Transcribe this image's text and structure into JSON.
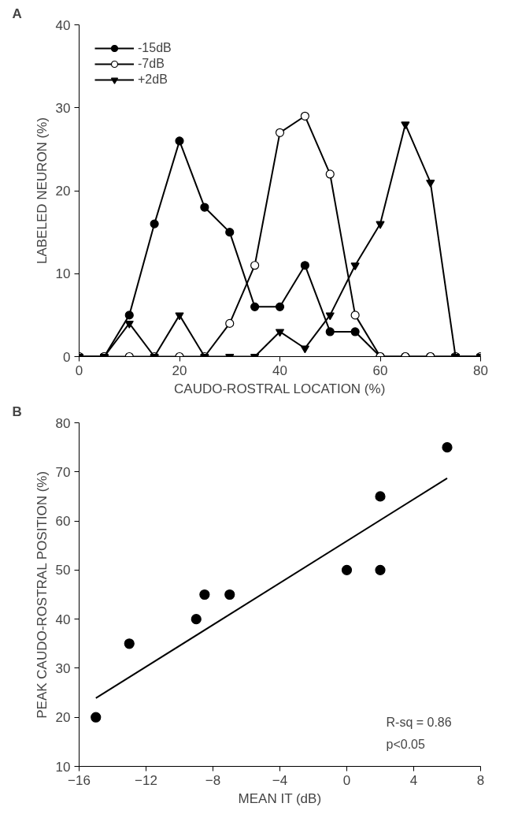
{
  "chart_data": [
    {
      "type": "line",
      "title": "A",
      "xlabel": "CAUDO-ROSTRAL LOCATION (%)",
      "ylabel": "LABELED NEURON (%)",
      "x": [
        0,
        5,
        10,
        15,
        20,
        25,
        30,
        35,
        40,
        45,
        50,
        55,
        60,
        65,
        70,
        75,
        80
      ],
      "xlim": [
        0,
        80
      ],
      "xticks": [
        0,
        20,
        40,
        60,
        80
      ],
      "ylim": [
        0,
        40
      ],
      "yticks": [
        0,
        10,
        20,
        30,
        40
      ],
      "grid": false,
      "legend": "top left",
      "line_style": "solid",
      "series": [
        {
          "name": "-15dB",
          "color": "#000000",
          "marker": "circle",
          "values": [
            0,
            0,
            5,
            16,
            26,
            18,
            15,
            6,
            6,
            11,
            3,
            3,
            0,
            0,
            0,
            0,
            0
          ]
        },
        {
          "name": "-7dB",
          "color": "#ffffff",
          "marker": "circle",
          "values": [
            0,
            0,
            0,
            0,
            0,
            0,
            4,
            11,
            27,
            29,
            22,
            5,
            0,
            0,
            0,
            0,
            0
          ]
        },
        {
          "name": "+2dB",
          "color": "#000000",
          "marker": "triangle",
          "values": [
            0,
            0,
            4,
            0,
            5,
            0,
            0,
            0,
            3,
            1,
            5,
            11,
            16,
            28,
            21,
            0,
            0
          ]
        }
      ]
    },
    {
      "type": "scatter",
      "title": "B",
      "xlabel": "MEAN IT (dB)",
      "ylabel": "PEAK CAUDO-ROSTRAL POSITION (%)",
      "xlim": [
        -16,
        8
      ],
      "xticks": [
        -16,
        -12,
        -8,
        -4,
        0,
        4,
        8
      ],
      "ylim": [
        10,
        80
      ],
      "yticks": [
        10,
        20,
        30,
        40,
        50,
        60,
        70,
        80
      ],
      "grid": false,
      "legend": false,
      "annotations": [
        "R-sq = 0.86",
        "p<0.05"
      ],
      "series": [
        {
          "type": "scatter",
          "color": "#000000",
          "marker": "circle",
          "x": [
            -15,
            -13,
            -9,
            -8.5,
            -7,
            0,
            2,
            2,
            6
          ],
          "values": [
            20,
            35,
            40,
            45,
            45,
            50,
            65,
            50,
            75
          ]
        },
        {
          "type": "line",
          "color": "#000000",
          "marker": "none",
          "x": [
            -15,
            6
          ],
          "values": [
            23.9,
            68.7
          ]
        }
      ]
    }
  ]
}
